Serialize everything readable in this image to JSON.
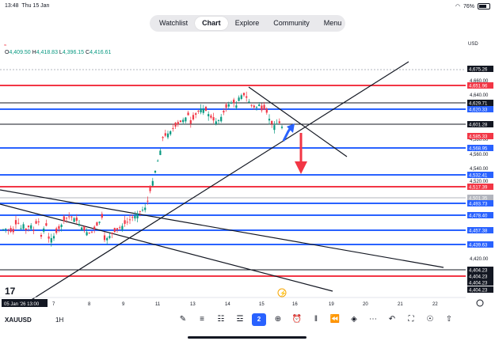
{
  "status": {
    "time": "13:48",
    "date": "Thu 15 Jan",
    "battery": "76%"
  },
  "nav": {
    "tabs": [
      "Watchlist",
      "Chart",
      "Explore",
      "Community",
      "Menu"
    ],
    "active": "Chart"
  },
  "currency": "USD",
  "symbol": {
    "name": "XAUUSD",
    "timeframe": "1H"
  },
  "ohlc": {
    "o_label": "O",
    "o": "4,409.50",
    "h_label": "H",
    "h": "4,418.83",
    "l_label": "L",
    "l": "4,396.15",
    "c_label": "C",
    "c": "4,416.61"
  },
  "price_axis": {
    "ticks": [
      "4,660.00",
      "4,640.00",
      "4,580.00",
      "4,560.00",
      "4,540.00",
      "4,520.00",
      "4,420.00"
    ],
    "badges": [
      {
        "label": "4,675.26",
        "color": "#131722"
      },
      {
        "label": "4,651.96",
        "color": "#f23645"
      },
      {
        "label": "4,629.71",
        "color": "#131722"
      },
      {
        "label": "4,620.33",
        "color": "#2962ff"
      },
      {
        "label": "4,601.28",
        "color": "#131722"
      },
      {
        "label": "4,585.33",
        "color": "#f23645"
      },
      {
        "label": "4,568.95",
        "color": "#2962ff"
      },
      {
        "label": "4,532.41",
        "color": "#2962ff"
      },
      {
        "label": "4,517.39",
        "color": "#f23645"
      },
      {
        "label": "4,501.35",
        "color": "#b2b5be"
      },
      {
        "label": "4,493.73",
        "color": "#2962ff"
      },
      {
        "label": "4,478.40",
        "color": "#2962ff"
      },
      {
        "label": "4,457.38",
        "color": "#2962ff"
      },
      {
        "label": "4,439.63",
        "color": "#2962ff"
      },
      {
        "label": "4,404.23",
        "color": "#131722"
      },
      {
        "label": "4,404.23",
        "color": "#131722"
      },
      {
        "label": "4,404.23",
        "color": "#131722"
      },
      {
        "label": "4,404.23",
        "color": "#131722"
      }
    ]
  },
  "time_axis": {
    "labels": [
      "05 Jan '26  13:00",
      "7",
      "8",
      "9",
      "11",
      "13",
      "14",
      "15",
      "16",
      "19",
      "20",
      "21",
      "22"
    ]
  },
  "colors": {
    "up": "#089981",
    "down": "#f23645",
    "blue": "#2962ff",
    "black": "#131722"
  }
}
